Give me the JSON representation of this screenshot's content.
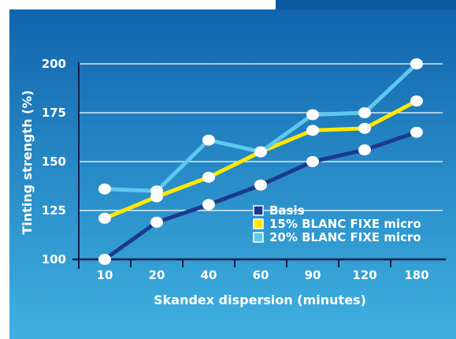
{
  "chart_data": {
    "type": "line",
    "title": "",
    "xlabel": "Skandex dispersion (minutes)",
    "ylabel": "Tinting strength (%)",
    "categories": [
      "10",
      "20",
      "40",
      "60",
      "90",
      "120",
      "180"
    ],
    "ylim": [
      100,
      200
    ],
    "yticks": [
      "100",
      "125",
      "150",
      "175",
      "200"
    ],
    "grid": true,
    "legend_position": "bottom-right",
    "series": [
      {
        "name": "Basis",
        "color": "#1c3a8c",
        "values": [
          100,
          119,
          128,
          138,
          150,
          156,
          165
        ]
      },
      {
        "name": "15% BLANC FIXE micro",
        "color": "#ffe800",
        "values": [
          121,
          132,
          142,
          155,
          166,
          167,
          181
        ]
      },
      {
        "name": "20% BLANC FIXE micro",
        "color": "#5ec8ee",
        "values": [
          136,
          135,
          161,
          155,
          174,
          175,
          200
        ]
      }
    ]
  },
  "colors": {
    "background_top": "#1164ac",
    "background_bottom": "#3fb1e1",
    "axis": "#0a1f4d",
    "grid": "#ffffff",
    "marker": "#ffffff"
  }
}
